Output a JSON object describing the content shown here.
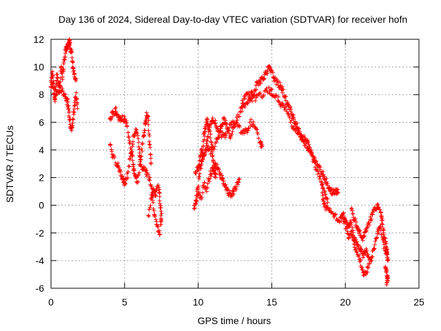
{
  "chart_data": {
    "type": "scatter",
    "title": "Day 136 of 2024, Sidereal Day-to-day VTEC variation (SDTVAR) for receiver hofn",
    "xlabel": "GPS time / hours",
    "ylabel": "SDTVAR / TECUs",
    "xlim": [
      0,
      25
    ],
    "ylim": [
      -6,
      12
    ],
    "x_ticks": [
      0,
      5,
      10,
      15,
      20,
      25
    ],
    "y_ticks": [
      -6,
      -4,
      -2,
      0,
      2,
      4,
      6,
      8,
      10,
      12
    ],
    "grid": true,
    "marker": "+",
    "series": [
      {
        "name": "SDTVAR",
        "color": "#ff0000",
        "segments": [
          [
            [
              0.0,
              8.5
            ],
            [
              0.1,
              9.8
            ],
            [
              0.2,
              8.0
            ],
            [
              0.3,
              7.5
            ],
            [
              0.4,
              9.5
            ],
            [
              0.5,
              8.8
            ],
            [
              0.6,
              8.2
            ],
            [
              0.7,
              10.0
            ],
            [
              0.8,
              9.3
            ],
            [
              0.9,
              10.6
            ],
            [
              1.0,
              11.2
            ],
            [
              1.1,
              11.4
            ],
            [
              1.2,
              11.6
            ],
            [
              1.25,
              11.9
            ],
            [
              1.3,
              11.5
            ],
            [
              1.4,
              11.0
            ],
            [
              1.5,
              10.0
            ],
            [
              1.6,
              9.5
            ],
            [
              1.7,
              9.0
            ]
          ],
          [
            [
              0.0,
              8.8
            ],
            [
              0.2,
              8.6
            ],
            [
              0.4,
              8.0
            ],
            [
              0.6,
              8.5
            ],
            [
              0.8,
              8.2
            ],
            [
              1.0,
              7.9
            ],
            [
              1.1,
              7.5
            ],
            [
              1.2,
              7.0
            ],
            [
              1.3,
              6.0
            ],
            [
              1.4,
              5.4
            ],
            [
              1.5,
              6.2
            ],
            [
              1.6,
              7.2
            ],
            [
              1.7,
              8.0
            ],
            [
              1.8,
              7.0
            ]
          ],
          [
            [
              4.0,
              6.2
            ],
            [
              4.2,
              6.6
            ],
            [
              4.4,
              6.9
            ],
            [
              4.5,
              6.5
            ],
            [
              4.7,
              6.2
            ],
            [
              4.9,
              6.3
            ],
            [
              5.1,
              6.0
            ],
            [
              5.3,
              5.0
            ],
            [
              5.5,
              3.8
            ],
            [
              5.6,
              2.8
            ],
            [
              5.7,
              2.0
            ],
            [
              5.9,
              1.8
            ],
            [
              6.1,
              3.5
            ],
            [
              6.3,
              5.0
            ],
            [
              6.4,
              5.9
            ],
            [
              6.5,
              6.5
            ],
            [
              6.6,
              6.2
            ],
            [
              6.7,
              4.5
            ],
            [
              6.8,
              3.0
            ]
          ],
          [
            [
              4.0,
              4.5
            ],
            [
              4.2,
              3.5
            ],
            [
              4.5,
              3.0
            ],
            [
              4.7,
              2.5
            ],
            [
              4.9,
              1.8
            ],
            [
              5.0,
              1.5
            ],
            [
              5.2,
              2.2
            ],
            [
              5.4,
              3.5
            ],
            [
              5.6,
              4.8
            ],
            [
              5.8,
              5.5
            ],
            [
              6.0,
              4.0
            ],
            [
              6.1,
              3.0
            ],
            [
              6.3,
              2.6
            ],
            [
              6.5,
              2.4
            ],
            [
              6.7,
              1.8
            ],
            [
              6.9,
              1.0
            ],
            [
              7.0,
              -0.5
            ],
            [
              7.2,
              -1.5
            ],
            [
              7.4,
              -2.1
            ]
          ],
          [
            [
              6.6,
              -0.8
            ],
            [
              6.8,
              0.5
            ],
            [
              7.0,
              1.2
            ],
            [
              7.1,
              0.8
            ],
            [
              7.3,
              1.4
            ],
            [
              7.4,
              0.5
            ],
            [
              7.5,
              -0.8
            ],
            [
              7.45,
              -1.4
            ]
          ],
          [
            [
              9.7,
              -0.3
            ],
            [
              9.9,
              0.8
            ],
            [
              10.1,
              2.2
            ],
            [
              10.3,
              3.5
            ],
            [
              10.4,
              5.0
            ],
            [
              10.5,
              5.6
            ],
            [
              10.6,
              6.2
            ],
            [
              10.7,
              5.8
            ],
            [
              10.9,
              4.5
            ],
            [
              11.0,
              3.5
            ],
            [
              11.1,
              2.5
            ],
            [
              11.2,
              2.0
            ]
          ],
          [
            [
              9.8,
              2.3
            ],
            [
              10.0,
              2.8
            ],
            [
              10.2,
              4.0
            ],
            [
              10.4,
              3.6
            ],
            [
              10.6,
              4.5
            ],
            [
              10.8,
              5.8
            ],
            [
              11.0,
              6.3
            ],
            [
              11.2,
              5.8
            ],
            [
              11.4,
              5.3
            ],
            [
              11.6,
              5.9
            ],
            [
              11.8,
              6.2
            ],
            [
              12.0,
              5.5
            ],
            [
              12.2,
              5.0
            ],
            [
              12.5,
              6.0
            ],
            [
              12.8,
              6.6
            ],
            [
              13.0,
              7.5
            ],
            [
              13.3,
              8.0
            ],
            [
              13.6,
              8.1
            ],
            [
              13.8,
              8.0
            ],
            [
              14.0,
              8.8
            ],
            [
              14.2,
              9.0
            ],
            [
              14.4,
              9.2
            ],
            [
              14.6,
              9.6
            ],
            [
              14.8,
              9.9
            ],
            [
              15.0,
              9.6
            ],
            [
              15.2,
              9.1
            ],
            [
              15.4,
              8.8
            ],
            [
              15.6,
              8.6
            ],
            [
              15.8,
              8.2
            ],
            [
              16.0,
              7.5
            ],
            [
              16.2,
              7.0
            ],
            [
              16.4,
              6.6
            ],
            [
              16.6,
              6.0
            ],
            [
              16.8,
              5.5
            ],
            [
              17.0,
              5.0
            ],
            [
              17.2,
              4.8
            ],
            [
              17.4,
              4.6
            ],
            [
              17.6,
              4.0
            ],
            [
              17.8,
              3.6
            ],
            [
              18.0,
              3.2
            ],
            [
              18.2,
              2.8
            ],
            [
              18.4,
              2.4
            ],
            [
              18.6,
              2.0
            ],
            [
              18.8,
              1.5
            ],
            [
              19.0,
              1.0
            ],
            [
              19.2,
              1.0
            ],
            [
              19.4,
              1.0
            ],
            [
              19.5,
              0.9
            ]
          ],
          [
            [
              9.8,
              0.0
            ],
            [
              10.0,
              1.0
            ],
            [
              10.2,
              0.5
            ],
            [
              10.4,
              1.5
            ],
            [
              10.6,
              1.2
            ],
            [
              10.8,
              2.2
            ],
            [
              11.0,
              2.6
            ],
            [
              11.2,
              2.9
            ],
            [
              11.4,
              2.5
            ],
            [
              11.6,
              2.0
            ],
            [
              11.8,
              1.4
            ],
            [
              12.0,
              1.0
            ],
            [
              12.2,
              0.7
            ],
            [
              12.4,
              0.9
            ],
            [
              12.6,
              1.4
            ],
            [
              12.8,
              1.9
            ]
          ],
          [
            [
              10.0,
              2.5
            ],
            [
              10.3,
              3.2
            ],
            [
              10.6,
              4.2
            ],
            [
              10.9,
              3.8
            ],
            [
              11.2,
              4.6
            ],
            [
              11.5,
              5.2
            ],
            [
              11.8,
              5.0
            ],
            [
              12.1,
              5.6
            ],
            [
              12.4,
              6.0
            ],
            [
              12.7,
              5.8
            ],
            [
              13.0,
              5.2
            ],
            [
              13.3,
              5.4
            ],
            [
              13.6,
              6.0
            ],
            [
              13.9,
              5.6
            ],
            [
              14.2,
              4.5
            ],
            [
              14.35,
              4.3
            ]
          ],
          [
            [
              13.0,
              7.0
            ],
            [
              13.3,
              7.4
            ],
            [
              13.6,
              7.6
            ],
            [
              14.0,
              7.8
            ],
            [
              14.4,
              8.0
            ],
            [
              14.8,
              8.4
            ],
            [
              15.0,
              8.2
            ],
            [
              15.3,
              7.8
            ],
            [
              15.6,
              7.4
            ],
            [
              15.9,
              7.0
            ],
            [
              16.2,
              6.4
            ],
            [
              16.5,
              5.6
            ],
            [
              16.8,
              5.2
            ],
            [
              17.1,
              4.6
            ],
            [
              17.4,
              4.2
            ],
            [
              17.7,
              3.6
            ],
            [
              18.0,
              2.8
            ],
            [
              18.3,
              2.0
            ],
            [
              18.6,
              1.0
            ],
            [
              18.8,
              0.2
            ]
          ],
          [
            [
              18.4,
              1.5
            ],
            [
              18.5,
              0.2
            ],
            [
              18.7,
              -0.2
            ],
            [
              19.0,
              -0.5
            ],
            [
              19.3,
              -0.8
            ],
            [
              19.6,
              -1.2
            ],
            [
              19.8,
              -0.8
            ],
            [
              20.0,
              -1.5
            ],
            [
              20.2,
              -2.4
            ],
            [
              20.4,
              -2.0
            ],
            [
              20.6,
              -2.4
            ],
            [
              20.8,
              -2.8
            ],
            [
              21.0,
              -3.2
            ],
            [
              21.2,
              -3.6
            ],
            [
              21.4,
              -3.2
            ],
            [
              21.6,
              -3.8
            ]
          ],
          [
            [
              19.8,
              -0.6
            ],
            [
              20.0,
              -1.0
            ],
            [
              20.2,
              -1.5
            ],
            [
              20.4,
              -1.2
            ],
            [
              20.6,
              -2.8
            ],
            [
              20.8,
              -3.4
            ],
            [
              21.0,
              -4.0
            ],
            [
              21.2,
              -4.8
            ],
            [
              21.4,
              -5.0
            ],
            [
              21.6,
              -4.2
            ],
            [
              21.8,
              -3.8
            ],
            [
              22.0,
              -2.8
            ],
            [
              22.2,
              -2.0
            ],
            [
              22.4,
              -1.6
            ],
            [
              22.6,
              -2.8
            ],
            [
              22.8,
              -3.5
            ],
            [
              22.9,
              -4.0
            ]
          ],
          [
            [
              20.4,
              -0.3
            ],
            [
              20.6,
              -1.0
            ],
            [
              20.8,
              -1.6
            ],
            [
              21.0,
              -2.0
            ],
            [
              21.2,
              -2.4
            ],
            [
              21.4,
              -1.8
            ],
            [
              21.6,
              -1.4
            ],
            [
              21.8,
              -0.8
            ],
            [
              22.0,
              -0.3
            ],
            [
              22.2,
              0.0
            ],
            [
              22.4,
              -0.6
            ],
            [
              22.5,
              -1.2
            ],
            [
              22.6,
              -2.0
            ],
            [
              22.7,
              -2.6
            ],
            [
              22.8,
              -3.2
            ],
            [
              22.85,
              -3.4
            ]
          ],
          [
            [
              22.7,
              -4.6
            ],
            [
              22.8,
              -4.9
            ],
            [
              22.9,
              -5.3
            ],
            [
              22.8,
              -5.6
            ]
          ]
        ]
      }
    ]
  }
}
